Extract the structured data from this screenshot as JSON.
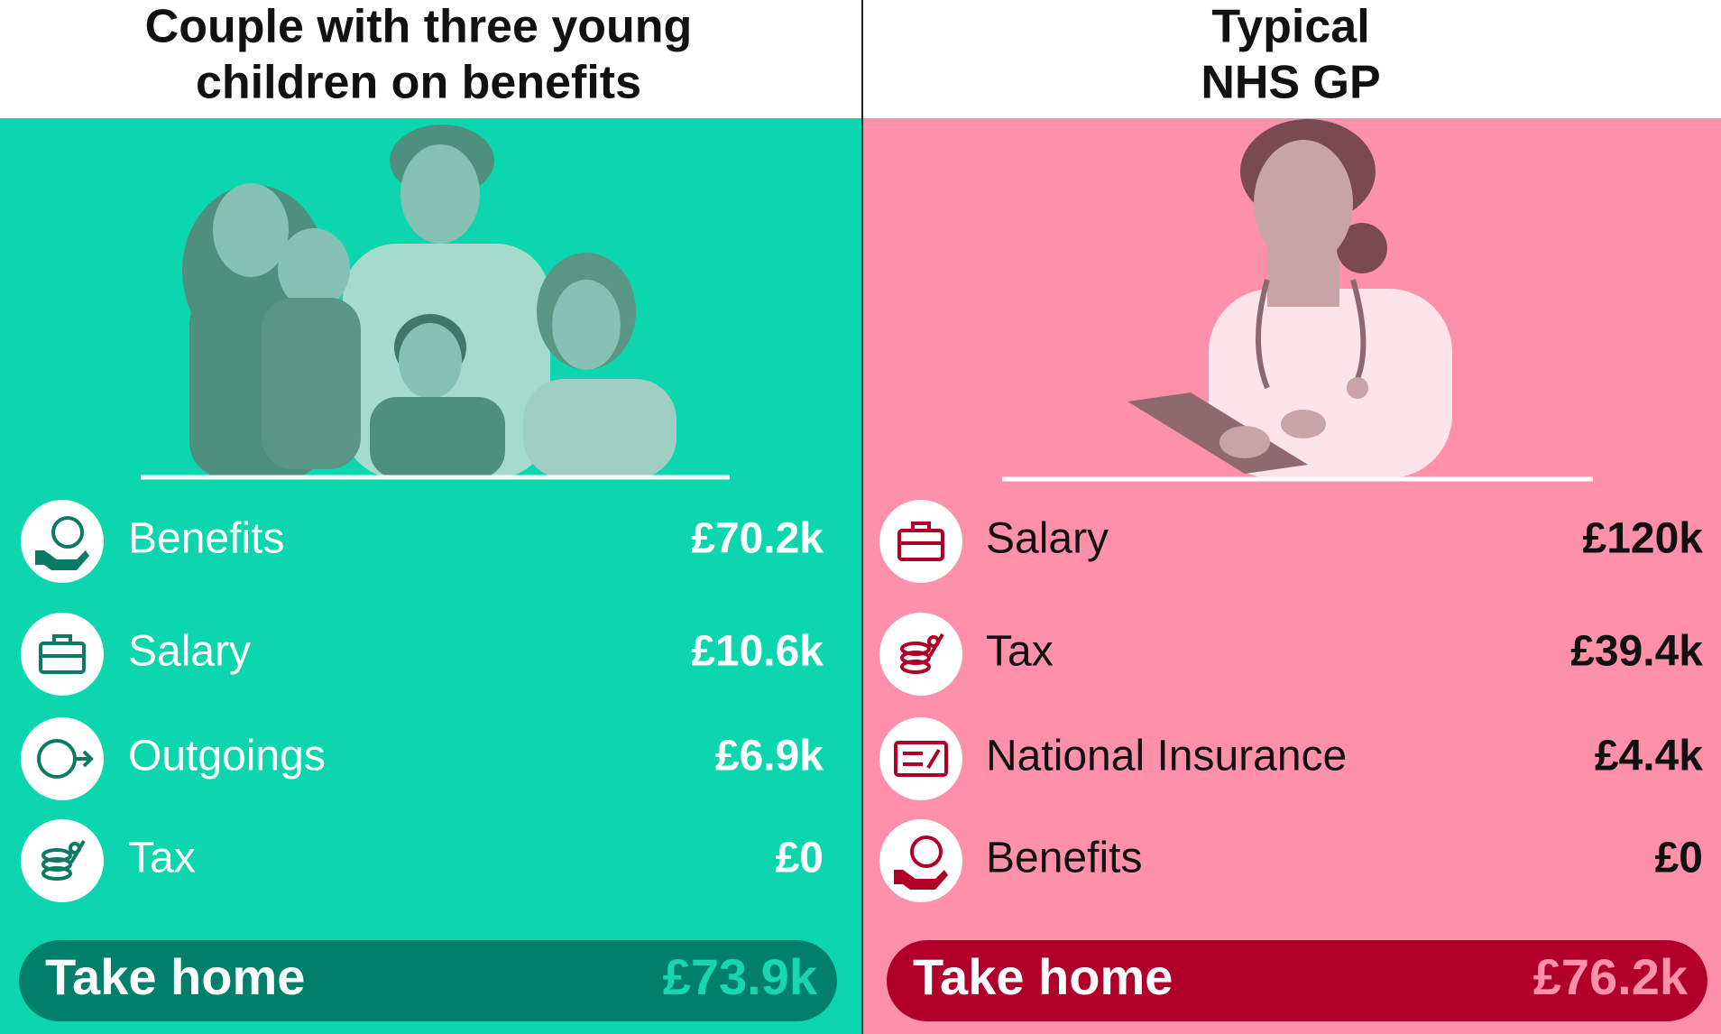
{
  "panels": [
    {
      "title": [
        "Couple with three young",
        "children on benefits"
      ],
      "rows": [
        {
          "label": "Benefits",
          "value": "£70.2k"
        },
        {
          "label": "Salary",
          "value": "£10.6k"
        },
        {
          "label": "Outgoings",
          "value": "£6.9k"
        },
        {
          "label": "Tax",
          "value": "£0"
        }
      ],
      "total": {
        "label": "Take home",
        "value": "£73.9k"
      }
    },
    {
      "title": [
        "Typical",
        "NHS GP"
      ],
      "rows": [
        {
          "label": "Salary",
          "value": "£120k"
        },
        {
          "label": "Tax",
          "value": "£39.4k"
        },
        {
          "label": "National Insurance",
          "value": "£4.4k"
        },
        {
          "label": "Benefits",
          "value": "£0"
        }
      ],
      "total": {
        "label": "Take home",
        "value": "£76.2k"
      }
    }
  ]
}
